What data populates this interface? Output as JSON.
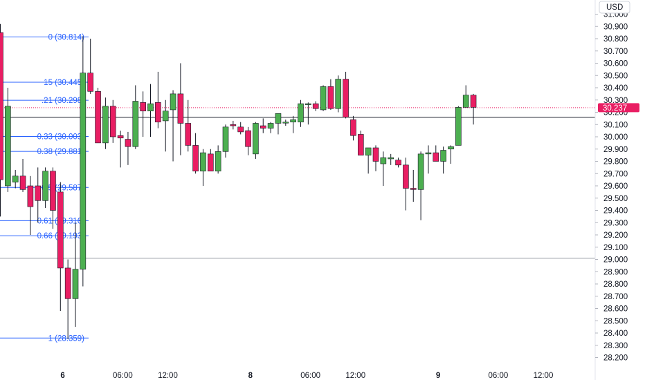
{
  "currency_label": "USD",
  "last_price": "30.237",
  "last_price_value": 30.237,
  "colors": {
    "up": "#4caf50",
    "down": "#e91e63",
    "fib": "#2962ff",
    "price_tag": "#e91e63",
    "axis_text": "#131722"
  },
  "chart_data": {
    "type": "candlestick",
    "y_ticks": [
      28.2,
      28.3,
      28.4,
      28.5,
      28.6,
      28.7,
      28.8,
      28.9,
      29.0,
      29.1,
      29.2,
      29.3,
      29.4,
      29.5,
      29.6,
      29.7,
      29.8,
      29.9,
      30.0,
      30.1,
      30.2,
      30.3,
      30.4,
      30.5,
      30.6,
      30.7,
      30.8,
      30.9,
      31.0
    ],
    "y_tick_labels": [
      "28.200",
      "28.300",
      "28.400",
      "28.500",
      "28.600",
      "28.700",
      "28.800",
      "28.900",
      "29.000",
      "29.100",
      "29.200",
      "29.300",
      "29.400",
      "29.500",
      "29.600",
      "29.700",
      "29.800",
      "29.900",
      "30.000",
      "30.100",
      "30.200",
      "30.300",
      "30.400",
      "30.500",
      "30.600",
      "30.700",
      "30.800",
      "30.900",
      "31.000"
    ],
    "ylim": [
      28.15,
      31.05
    ],
    "x_labels": [
      {
        "label": "6",
        "bold": true,
        "index": 8.3
      },
      {
        "label": "06:00",
        "bold": false,
        "index": 16.3
      },
      {
        "label": "12:00",
        "bold": false,
        "index": 22.3
      },
      {
        "label": "8",
        "bold": true,
        "index": 33.3
      },
      {
        "label": "06:00",
        "bold": false,
        "index": 41.3
      },
      {
        "label": "12:00",
        "bold": false,
        "index": 47.3
      },
      {
        "label": "9",
        "bold": true,
        "index": 58.3
      },
      {
        "label": "06:00",
        "bold": false,
        "index": 66.3
      },
      {
        "label": "12:00",
        "bold": false,
        "index": 72.3
      }
    ],
    "fib_levels": [
      {
        "label": "0 (30.814)",
        "price": 30.814
      },
      {
        "label": "15 (30.445)",
        "price": 30.445
      },
      {
        "label": ".21 (30.298)",
        "price": 30.298
      },
      {
        "label": "0.33 (30.003)",
        "price": 30.003
      },
      {
        "label": "0.38 (29.881)",
        "price": 29.881
      },
      {
        "label": "0.5 (29.587)",
        "price": 29.587
      },
      {
        "label": "0.61 (29.316)",
        "price": 29.316
      },
      {
        "label": "0.66 (29.193)",
        "price": 29.193
      },
      {
        "label": "1 (28.359)",
        "price": 28.359
      }
    ],
    "horizontal_lines": [
      30.16,
      29.01
    ],
    "candles": [
      {
        "o": 30.85,
        "h": 30.92,
        "l": 29.35,
        "c": 29.65
      },
      {
        "o": 29.6,
        "h": 30.4,
        "l": 29.55,
        "c": 30.25
      },
      {
        "o": 29.63,
        "h": 29.73,
        "l": 29.58,
        "c": 29.68
      },
      {
        "o": 29.68,
        "h": 29.82,
        "l": 29.55,
        "c": 29.57
      },
      {
        "o": 29.6,
        "h": 29.68,
        "l": 29.2,
        "c": 29.43
      },
      {
        "o": 29.6,
        "h": 29.75,
        "l": 29.3,
        "c": 29.48
      },
      {
        "o": 29.48,
        "h": 29.75,
        "l": 29.42,
        "c": 29.72
      },
      {
        "o": 29.72,
        "h": 29.75,
        "l": 29.25,
        "c": 29.4
      },
      {
        "o": 29.55,
        "h": 29.63,
        "l": 28.58,
        "c": 28.93
      },
      {
        "o": 28.93,
        "h": 29.0,
        "l": 28.35,
        "c": 28.68
      },
      {
        "o": 28.68,
        "h": 29.3,
        "l": 28.45,
        "c": 28.92
      },
      {
        "o": 28.92,
        "h": 30.82,
        "l": 28.78,
        "c": 30.52
      },
      {
        "o": 30.52,
        "h": 30.8,
        "l": 30.35,
        "c": 30.37
      },
      {
        "o": 30.37,
        "h": 30.4,
        "l": 29.95,
        "c": 29.95
      },
      {
        "o": 29.95,
        "h": 30.32,
        "l": 29.9,
        "c": 30.25
      },
      {
        "o": 30.25,
        "h": 30.3,
        "l": 29.95,
        "c": 30.0
      },
      {
        "o": 30.01,
        "h": 30.05,
        "l": 29.75,
        "c": 29.99
      },
      {
        "o": 29.98,
        "h": 30.04,
        "l": 29.77,
        "c": 29.92
      },
      {
        "o": 29.92,
        "h": 30.42,
        "l": 29.9,
        "c": 30.29
      },
      {
        "o": 30.28,
        "h": 30.37,
        "l": 30.0,
        "c": 30.21
      },
      {
        "o": 30.21,
        "h": 30.43,
        "l": 30.0,
        "c": 30.27
      },
      {
        "o": 30.28,
        "h": 30.53,
        "l": 30.07,
        "c": 30.12
      },
      {
        "o": 30.13,
        "h": 30.3,
        "l": 29.88,
        "c": 30.21
      },
      {
        "o": 30.22,
        "h": 30.38,
        "l": 29.8,
        "c": 30.35
      },
      {
        "o": 30.35,
        "h": 30.6,
        "l": 29.85,
        "c": 30.11
      },
      {
        "o": 30.11,
        "h": 30.3,
        "l": 29.88,
        "c": 29.93
      },
      {
        "o": 29.93,
        "h": 30.03,
        "l": 29.7,
        "c": 29.72
      },
      {
        "o": 29.72,
        "h": 29.9,
        "l": 29.6,
        "c": 29.87
      },
      {
        "o": 29.86,
        "h": 29.9,
        "l": 29.72,
        "c": 29.72
      },
      {
        "o": 29.72,
        "h": 29.93,
        "l": 29.7,
        "c": 29.88
      },
      {
        "o": 29.88,
        "h": 30.1,
        "l": 29.83,
        "c": 30.08
      },
      {
        "o": 30.1,
        "h": 30.13,
        "l": 30.06,
        "c": 30.09
      },
      {
        "o": 30.08,
        "h": 30.12,
        "l": 30.02,
        "c": 30.04
      },
      {
        "o": 30.05,
        "h": 30.08,
        "l": 29.85,
        "c": 29.92
      },
      {
        "o": 29.86,
        "h": 30.12,
        "l": 29.82,
        "c": 30.11
      },
      {
        "o": 30.09,
        "h": 30.15,
        "l": 30.03,
        "c": 30.07
      },
      {
        "o": 30.07,
        "h": 30.12,
        "l": 30.03,
        "c": 30.11
      },
      {
        "o": 30.11,
        "h": 30.17,
        "l": 30.02,
        "c": 30.19
      },
      {
        "o": 30.12,
        "h": 30.14,
        "l": 30.09,
        "c": 30.12
      },
      {
        "o": 30.12,
        "h": 30.17,
        "l": 30.03,
        "c": 30.14
      },
      {
        "o": 30.12,
        "h": 30.3,
        "l": 30.08,
        "c": 30.27
      },
      {
        "o": 30.27,
        "h": 30.28,
        "l": 30.1,
        "c": 30.27
      },
      {
        "o": 30.27,
        "h": 30.29,
        "l": 30.21,
        "c": 30.23
      },
      {
        "o": 30.22,
        "h": 30.42,
        "l": 30.21,
        "c": 30.41
      },
      {
        "o": 30.41,
        "h": 30.47,
        "l": 30.22,
        "c": 30.23
      },
      {
        "o": 30.23,
        "h": 30.5,
        "l": 30.2,
        "c": 30.47
      },
      {
        "o": 30.47,
        "h": 30.53,
        "l": 30.15,
        "c": 30.16
      },
      {
        "o": 30.14,
        "h": 30.17,
        "l": 29.97,
        "c": 30.01
      },
      {
        "o": 30.02,
        "h": 30.05,
        "l": 29.85,
        "c": 29.85
      },
      {
        "o": 29.85,
        "h": 29.9,
        "l": 29.7,
        "c": 29.91
      },
      {
        "o": 29.91,
        "h": 29.93,
        "l": 29.72,
        "c": 29.8
      },
      {
        "o": 29.78,
        "h": 29.88,
        "l": 29.6,
        "c": 29.83
      },
      {
        "o": 29.82,
        "h": 29.86,
        "l": 29.77,
        "c": 29.83
      },
      {
        "o": 29.81,
        "h": 29.83,
        "l": 29.75,
        "c": 29.77
      },
      {
        "o": 29.77,
        "h": 29.83,
        "l": 29.4,
        "c": 29.58
      },
      {
        "o": 29.58,
        "h": 29.73,
        "l": 29.47,
        "c": 29.57
      },
      {
        "o": 29.57,
        "h": 29.88,
        "l": 29.32,
        "c": 29.86
      },
      {
        "o": 29.86,
        "h": 29.93,
        "l": 29.7,
        "c": 29.87
      },
      {
        "o": 29.87,
        "h": 29.93,
        "l": 29.8,
        "c": 29.8
      },
      {
        "o": 29.8,
        "h": 29.92,
        "l": 29.7,
        "c": 29.89
      },
      {
        "o": 29.9,
        "h": 29.93,
        "l": 29.78,
        "c": 29.92
      },
      {
        "o": 29.93,
        "h": 30.25,
        "l": 29.93,
        "c": 30.24
      },
      {
        "o": 30.24,
        "h": 30.42,
        "l": 30.24,
        "c": 30.34
      },
      {
        "o": 30.34,
        "h": 30.35,
        "l": 30.1,
        "c": 30.24
      }
    ]
  }
}
